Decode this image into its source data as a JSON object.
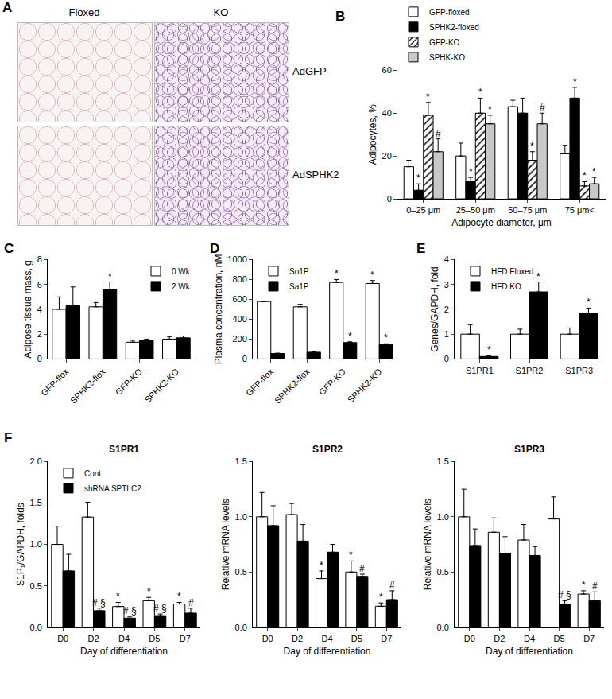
{
  "image_panel": {
    "panel_label": "A",
    "columns": [
      "Floxed",
      "KO"
    ],
    "rows": [
      "AdGFP",
      "AdSPHK2"
    ]
  },
  "chart_data": [
    {
      "type": "bar",
      "panel_label": "B",
      "x_label": "Adipocyte diameter, μm",
      "y_label": "Adipocytes, %",
      "categories": [
        "0–25 μm",
        "25–50 μm",
        "50–75 μm",
        "75 μm<"
      ],
      "ylim": [
        0,
        60
      ],
      "yticks": [
        0,
        20,
        40,
        60
      ],
      "grid": false,
      "legend": "above",
      "series": [
        {
          "name": "GFP-floxed",
          "color": "#ffffff",
          "values": [
            15,
            20,
            43,
            21
          ],
          "errors": [
            3,
            6,
            3,
            4
          ],
          "significance": [
            null,
            null,
            null,
            null
          ]
        },
        {
          "name": "SPHK2-floxed",
          "color": "#000000",
          "values": [
            4,
            8,
            40,
            47
          ],
          "errors": [
            3,
            2,
            7,
            5
          ],
          "significance": [
            "*",
            "*",
            null,
            "*"
          ]
        },
        {
          "name": "GFP-KO",
          "color": "#ffffff",
          "marker": "hatched",
          "values": [
            39,
            40,
            18,
            6
          ],
          "errors": [
            6,
            7,
            4,
            2
          ],
          "significance": [
            "*",
            "*",
            "*",
            "*"
          ]
        },
        {
          "name": "SPHK-KO",
          "color": "#c8c8c8",
          "values": [
            22,
            35,
            35,
            7
          ],
          "errors": [
            6,
            4,
            5,
            3
          ],
          "significance": [
            "#",
            "*",
            "#",
            "*"
          ]
        }
      ]
    },
    {
      "type": "bar",
      "panel_label": "C",
      "y_label": "Adipose tissue mass, g",
      "categories": [
        "GFP-flox",
        "SPHK2-flox",
        "GFP-KO",
        "SPHK2-KO"
      ],
      "ylim": [
        0,
        8
      ],
      "yticks": [
        0,
        2,
        4,
        6,
        8
      ],
      "grid": false,
      "legend": "top right",
      "series": [
        {
          "name": "0 Wk",
          "color": "#ffffff",
          "values": [
            4.0,
            4.2,
            1.35,
            1.6
          ],
          "errors": [
            1.0,
            0.35,
            0.15,
            0.2
          ],
          "significance": [
            null,
            null,
            null,
            null
          ]
        },
        {
          "name": "2 Wk",
          "color": "#000000",
          "values": [
            4.3,
            5.6,
            1.5,
            1.7
          ],
          "errors": [
            1.5,
            0.6,
            0.1,
            0.15
          ],
          "significance": [
            null,
            "*",
            null,
            null
          ]
        }
      ]
    },
    {
      "type": "bar",
      "panel_label": "D",
      "y_label": "Plasma concentration, nM",
      "categories": [
        "GFP-flox",
        "SPHK2-flox",
        "GFP-KO",
        "SPHK2-KO"
      ],
      "ylim": [
        0,
        1000
      ],
      "yticks": [
        0,
        200,
        400,
        600,
        800,
        1000
      ],
      "grid": false,
      "legend": "top left",
      "series": [
        {
          "name": "So1P",
          "color": "#ffffff",
          "values": [
            578,
            525,
            770,
            760
          ],
          "errors": [
            5,
            25,
            30,
            30
          ],
          "significance": [
            null,
            null,
            "*",
            "*"
          ]
        },
        {
          "name": "Sa1P",
          "color": "#000000",
          "values": [
            55,
            68,
            165,
            145
          ],
          "errors": [
            4,
            5,
            8,
            8
          ],
          "significance": [
            null,
            null,
            "*",
            "*"
          ]
        }
      ]
    },
    {
      "type": "bar",
      "panel_label": "E",
      "y_label": "Genes/GAPDH, fold",
      "categories": [
        "S1PR1",
        "S1PR2",
        "S1PR3"
      ],
      "ylim": [
        0,
        4
      ],
      "yticks": [
        0,
        1,
        2,
        3,
        4
      ],
      "grid": false,
      "legend": "top left",
      "series": [
        {
          "name": "HFD Floxed",
          "color": "#ffffff",
          "values": [
            1,
            1,
            1
          ],
          "errors": [
            0.38,
            0.2,
            0.25
          ],
          "significance": [
            null,
            null,
            null
          ]
        },
        {
          "name": "HFD KO",
          "color": "#000000",
          "values": [
            0.1,
            2.7,
            1.85
          ],
          "errors": [
            0.03,
            0.4,
            0.2
          ],
          "significance": [
            "*",
            "*",
            "*"
          ]
        }
      ]
    },
    {
      "type": "bar",
      "panel_label": "F",
      "title": "S1PR1",
      "x_label": "Day of differentiation",
      "y_label": "S1P₁/GAPDH, folds",
      "categories": [
        "D0",
        "D2",
        "D4",
        "D5",
        "D7"
      ],
      "ylim": [
        0,
        2
      ],
      "yticks": [
        {
          "value": 0,
          "label": "0.0"
        },
        {
          "value": 0.5,
          "label": "0.5"
        },
        {
          "value": 1,
          "label": "1.0"
        },
        {
          "value": 1.5,
          "label": "1.5"
        },
        {
          "value": 2,
          "label": "2.0"
        }
      ],
      "grid": false,
      "legend": "top left",
      "series": [
        {
          "name": "Cont",
          "color": "#ffffff",
          "values": [
            1.0,
            1.33,
            0.25,
            0.32,
            0.28
          ],
          "errors": [
            0.22,
            0.18,
            0.05,
            0.04,
            0.02
          ],
          "significance": [
            null,
            null,
            "*",
            "*",
            "*"
          ]
        },
        {
          "name": "shRNA SPTLC2",
          "color": "#000000",
          "values": [
            0.68,
            0.2,
            0.11,
            0.14,
            0.17
          ],
          "errors": [
            0.2,
            0.03,
            0.02,
            0.02,
            0.06
          ],
          "significance": [
            null,
            "# §",
            "# §",
            "# §",
            "#"
          ]
        }
      ]
    },
    {
      "type": "bar",
      "title": "S1PR2",
      "x_label": "Day of differentiation",
      "y_label": "Relative mRNA levels",
      "categories": [
        "D0",
        "D2",
        "D4",
        "D5",
        "D7"
      ],
      "ylim": [
        0,
        1.5
      ],
      "yticks": [
        {
          "value": 0,
          "label": "0.0"
        },
        {
          "value": 0.5,
          "label": "0.5"
        },
        {
          "value": 1,
          "label": "1.0"
        },
        {
          "value": 1.5,
          "label": "1.5"
        }
      ],
      "grid": false,
      "series": [
        {
          "name": "Cont",
          "color": "#ffffff",
          "values": [
            1.0,
            1.02,
            0.44,
            0.5,
            0.19
          ],
          "errors": [
            0.22,
            0.1,
            0.07,
            0.1,
            0.03
          ],
          "significance": [
            null,
            null,
            "*",
            "*",
            "*"
          ]
        },
        {
          "name": "shRNA SPTLC2",
          "color": "#000000",
          "values": [
            0.92,
            0.78,
            0.68,
            0.46,
            0.25
          ],
          "errors": [
            0.18,
            0.15,
            0.07,
            0.02,
            0.08
          ],
          "significance": [
            null,
            null,
            null,
            "#",
            "#"
          ]
        }
      ]
    },
    {
      "type": "bar",
      "title": "S1PR3",
      "x_label": "Day of differentiation",
      "y_label": "Relative mRNA levels",
      "categories": [
        "D0",
        "D2",
        "D4",
        "D5",
        "D7"
      ],
      "ylim": [
        0,
        1.5
      ],
      "yticks": [
        {
          "value": 0,
          "label": "0.0"
        },
        {
          "value": 0.5,
          "label": "0.5"
        },
        {
          "value": 1,
          "label": "1.0"
        },
        {
          "value": 1.5,
          "label": "1.5"
        }
      ],
      "grid": false,
      "series": [
        {
          "name": "Cont",
          "color": "#ffffff",
          "values": [
            1.0,
            0.86,
            0.79,
            0.98,
            0.3
          ],
          "errors": [
            0.25,
            0.13,
            0.14,
            0.2,
            0.03
          ],
          "significance": [
            null,
            null,
            null,
            null,
            "*"
          ]
        },
        {
          "name": "shRNA SPTLC2",
          "color": "#000000",
          "values": [
            0.74,
            0.67,
            0.65,
            0.21,
            0.24
          ],
          "errors": [
            0.15,
            0.15,
            0.08,
            0.03,
            0.08
          ],
          "significance": [
            null,
            null,
            null,
            "# §",
            "#"
          ]
        }
      ]
    }
  ]
}
